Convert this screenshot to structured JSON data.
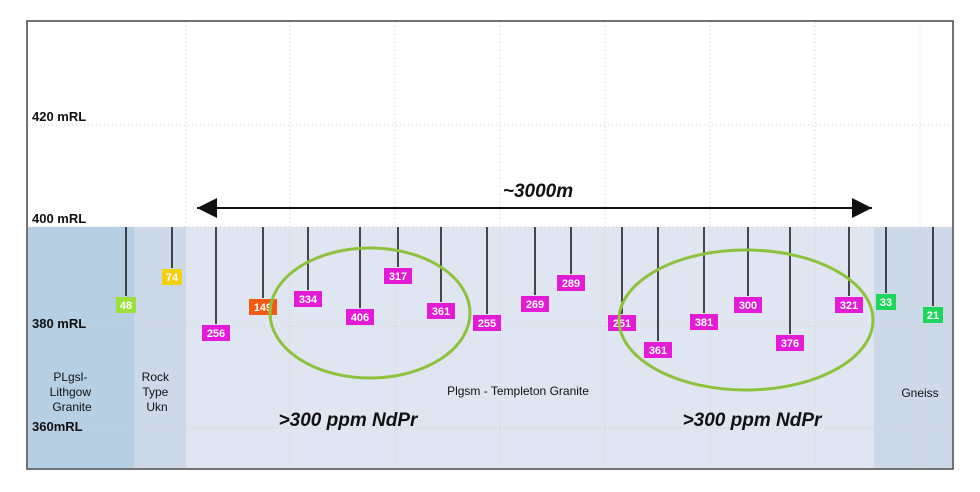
{
  "levels": [
    "420 mRL",
    "400 mRL",
    "380 mRL",
    "360mRL"
  ],
  "distance_label": "~3000m",
  "zones": {
    "lithgow": [
      "PLgsl-",
      "Lithgow",
      "Granite"
    ],
    "rock": [
      "Rock",
      "Type",
      "Ukn"
    ],
    "templeton": "Plgsm - Templeton Granite",
    "gneiss": "Gneiss"
  },
  "highlight_label": ">300 ppm NdPr",
  "colors": {
    "lithgow_bg": "#b6cfe3",
    "rock_bg": "#cdd9e8",
    "templeton_bg": "#dfe5f1",
    "gneiss_bg": "#cdd9e8",
    "ellipse": "#8dc33c",
    "magenta": "#e31bd6",
    "orange": "#f25a12",
    "yellow": "#f2cf0f",
    "lime": "#9ee03a",
    "green": "#1ed65b"
  },
  "holes": [
    {
      "value": "48",
      "color": "lime"
    },
    {
      "value": "74",
      "color": "yellow"
    },
    {
      "value": "256",
      "color": "magenta"
    },
    {
      "value": "149",
      "color": "orange"
    },
    {
      "value": "334",
      "color": "magenta"
    },
    {
      "value": "406",
      "color": "magenta"
    },
    {
      "value": "317",
      "color": "magenta"
    },
    {
      "value": "361",
      "color": "magenta"
    },
    {
      "value": "255",
      "color": "magenta"
    },
    {
      "value": "269",
      "color": "magenta"
    },
    {
      "value": "289",
      "color": "magenta"
    },
    {
      "value": "251",
      "color": "magenta"
    },
    {
      "value": "361",
      "color": "magenta"
    },
    {
      "value": "381",
      "color": "magenta"
    },
    {
      "value": "300",
      "color": "magenta"
    },
    {
      "value": "376",
      "color": "magenta"
    },
    {
      "value": "321",
      "color": "magenta"
    },
    {
      "value": "33",
      "color": "green"
    },
    {
      "value": "21",
      "color": "green"
    }
  ]
}
